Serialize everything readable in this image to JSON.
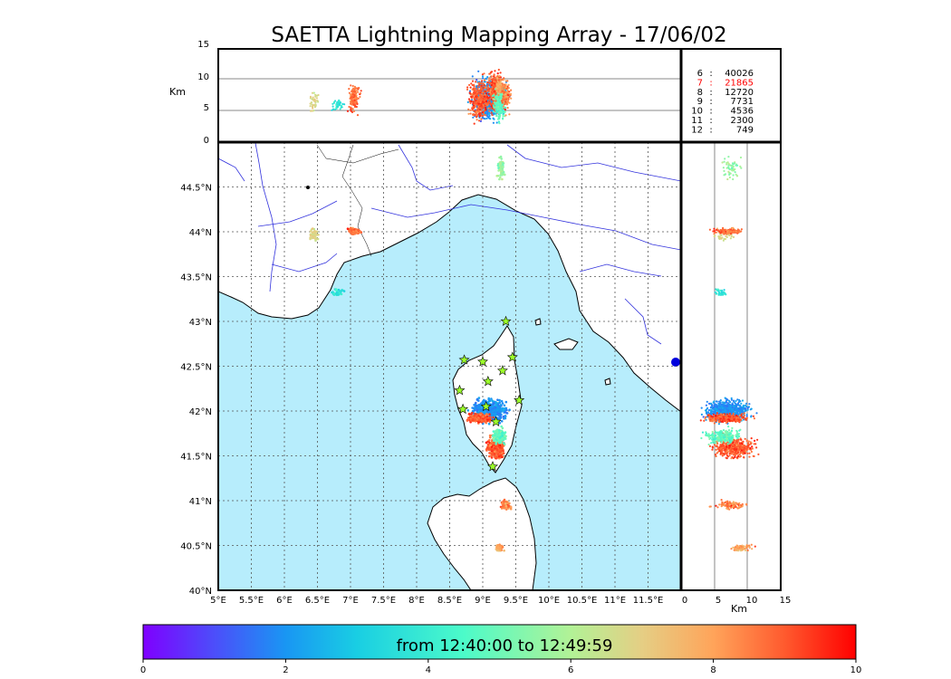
{
  "figure": {
    "title": "SAETTA Lightning Mapping Array - 17/06/02",
    "colorbar_text": "from 12:40:00 to 12:49:59",
    "colors": {
      "sea": "#b7edfc",
      "land": "#ffffff",
      "grid": "#555555",
      "river": "#3333dd",
      "frame": "#000000",
      "highlight_stat": "#ff0000"
    }
  },
  "stats": [
    {
      "key": "6",
      "value": "40026",
      "color": "#000000"
    },
    {
      "key": "7",
      "value": "21865",
      "color": "#ff0000"
    },
    {
      "key": "8",
      "value": "12720",
      "color": "#000000"
    },
    {
      "key": "9",
      "value": "7731",
      "color": "#000000"
    },
    {
      "key": "10",
      "value": "4536",
      "color": "#000000"
    },
    {
      "key": "11",
      "value": "2300",
      "color": "#000000"
    },
    {
      "key": "12",
      "value": "749",
      "color": "#000000"
    }
  ],
  "chart_data": {
    "type": "scatter",
    "title": "SAETTA Lightning Mapping Array - 17/06/02",
    "map": {
      "xlim": [
        5,
        12
      ],
      "ylim": [
        40,
        45
      ],
      "xticks": [
        "5°E",
        "5.5°E",
        "6°E",
        "6.5°E",
        "7°E",
        "7.5°E",
        "8°E",
        "8.5°E",
        "9°E",
        "9.5°E",
        "10°E",
        "10.5°E",
        "11°E",
        "11.5°E"
      ],
      "yticks": [
        "40°N",
        "40.5°N",
        "41°N",
        "41.5°N",
        "42°N",
        "42.5°N",
        "43°N",
        "43.5°N",
        "44°N",
        "44.5°N"
      ],
      "grid": true,
      "stations": [
        {
          "lon": 9.35,
          "lat": 43.0
        },
        {
          "lon": 8.72,
          "lat": 42.57
        },
        {
          "lon": 9.0,
          "lat": 42.55
        },
        {
          "lon": 9.45,
          "lat": 42.6
        },
        {
          "lon": 9.3,
          "lat": 42.45
        },
        {
          "lon": 9.08,
          "lat": 42.33
        },
        {
          "lon": 8.65,
          "lat": 42.23
        },
        {
          "lon": 9.55,
          "lat": 42.12
        },
        {
          "lon": 8.7,
          "lat": 42.02
        },
        {
          "lon": 9.05,
          "lat": 42.05
        },
        {
          "lon": 9.2,
          "lat": 41.88
        },
        {
          "lon": 9.15,
          "lat": 41.38
        }
      ],
      "clusters": [
        {
          "lon": 6.8,
          "lat": 43.32,
          "dlon": 0.1,
          "dlat": 0.04,
          "height": 6.0,
          "dh": 1.0,
          "time": 3.6,
          "dt": 0.6,
          "n": 40
        },
        {
          "lon": 6.45,
          "lat": 43.97,
          "dlon": 0.07,
          "dlat": 0.07,
          "height": 6.5,
          "dh": 1.5,
          "time": 6.8,
          "dt": 0.5,
          "n": 40
        },
        {
          "lon": 7.05,
          "lat": 44.01,
          "dlon": 0.08,
          "dlat": 0.03,
          "height": 7.0,
          "dh": 2.0,
          "time": 8.8,
          "dt": 0.8,
          "n": 120
        },
        {
          "lon": 9.28,
          "lat": 44.7,
          "dlon": 0.05,
          "dlat": 0.1,
          "height": 7.5,
          "dh": 1.5,
          "time": 5.6,
          "dt": 0.8,
          "n": 60
        },
        {
          "lon": 9.1,
          "lat": 42.0,
          "dlon": 0.22,
          "dlat": 0.1,
          "height": 7.0,
          "dh": 3.0,
          "time": 2.0,
          "dt": 0.6,
          "n": 700
        },
        {
          "lon": 8.95,
          "lat": 41.92,
          "dlon": 0.15,
          "dlat": 0.04,
          "height": 7.0,
          "dh": 3.0,
          "time": 9.0,
          "dt": 0.8,
          "n": 350
        },
        {
          "lon": 9.2,
          "lat": 41.6,
          "dlon": 0.1,
          "dlat": 0.1,
          "height": 8.0,
          "dh": 3.0,
          "time": 9.0,
          "dt": 0.8,
          "n": 450
        },
        {
          "lon": 9.25,
          "lat": 41.72,
          "dlon": 0.08,
          "dlat": 0.07,
          "height": 6.0,
          "dh": 2.5,
          "time": 4.8,
          "dt": 0.8,
          "n": 250
        },
        {
          "lon": 9.35,
          "lat": 40.95,
          "dlon": 0.06,
          "dlat": 0.04,
          "height": 7.5,
          "dh": 2.0,
          "time": 8.5,
          "dt": 0.8,
          "n": 120
        },
        {
          "lon": 9.25,
          "lat": 40.47,
          "dlon": 0.05,
          "dlat": 0.04,
          "height": 9.0,
          "dh": 1.5,
          "time": 8.0,
          "dt": 1.0,
          "n": 80
        }
      ]
    },
    "height_panel": {
      "xlabel": "Km",
      "xlim": [
        0,
        15
      ],
      "xticks": [
        "0",
        "5",
        "10",
        "15"
      ]
    },
    "lon_height_panel": {
      "ylabel": "Km",
      "ylim": [
        0,
        15
      ],
      "yticks": [
        "0",
        "5",
        "10",
        "15"
      ]
    },
    "colorbar": {
      "vmin": 0,
      "vmax": 10,
      "ticks": [
        "0",
        "2",
        "4",
        "6",
        "8",
        "10"
      ]
    }
  }
}
